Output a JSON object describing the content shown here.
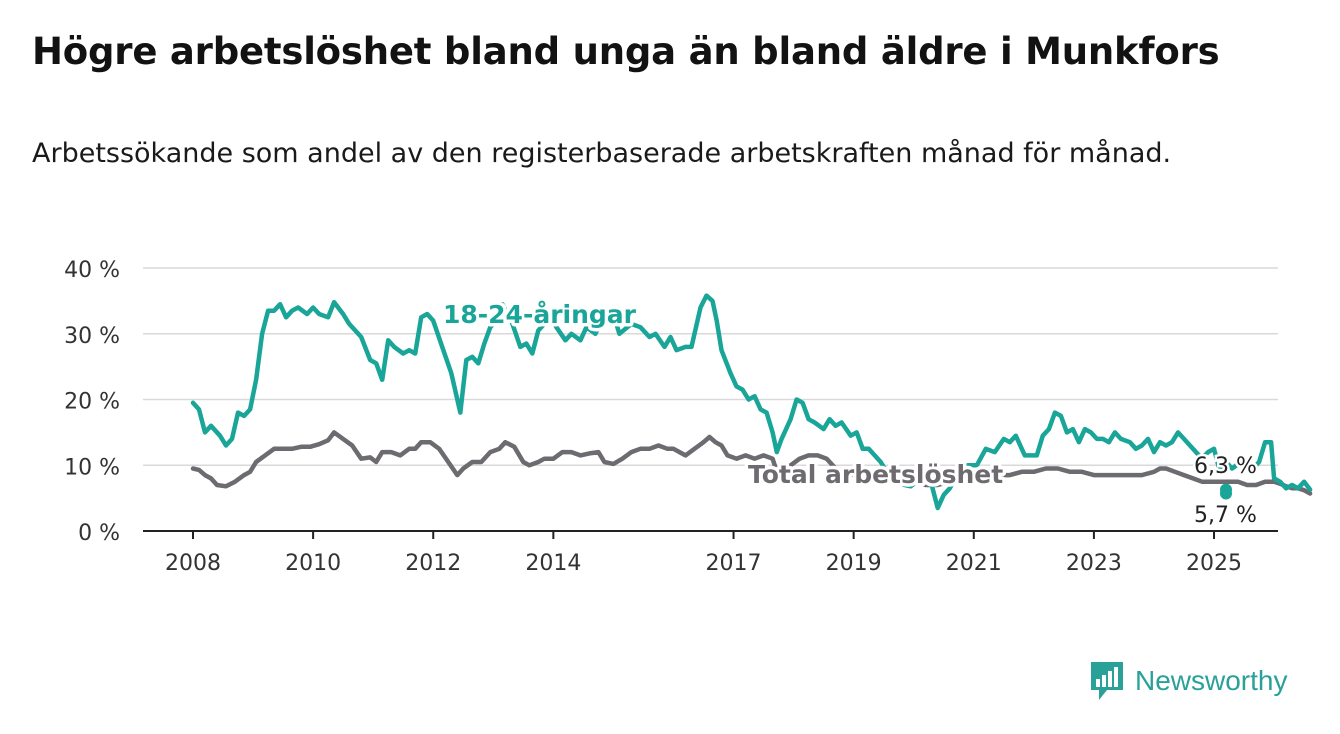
{
  "title": "Högre arbetslöshet bland unga än bland äldre i Munkfors",
  "subtitle": "Arbetssökande som andel av den registerbaserade arbetskraften månad för månad.",
  "brand": {
    "name": "Newsworthy",
    "icon": "newsworthy-logo-icon",
    "color": "#2aa198"
  },
  "chart_data": {
    "type": "line",
    "title": "Högre arbetslöshet bland unga än bland äldre i Munkfors",
    "subtitle": "Arbetssökande som andel av den registerbaserade arbetskraften månad för månad.",
    "xlabel": "",
    "ylabel": "",
    "ylim": [
      0,
      40
    ],
    "xlim": [
      2007.75,
      2026.1
    ],
    "grid": true,
    "y_ticks": [
      0,
      10,
      20,
      30,
      40
    ],
    "y_tick_labels": [
      "0 %",
      "10 %",
      "20 %",
      "30 %",
      "40 %"
    ],
    "x_ticks": [
      2008,
      2010,
      2012,
      2014,
      2017,
      2019,
      2021,
      2023,
      2025
    ],
    "x_tick_labels": [
      "2008",
      "2010",
      "2012",
      "2014",
      "2017",
      "2019",
      "2021",
      "2023",
      "2025"
    ],
    "series": [
      {
        "name": "18-24-åringar",
        "color": "#1aa599",
        "end_label": "6,3 %",
        "points": [
          [
            2008.0,
            19.5
          ],
          [
            2008.1,
            18.5
          ],
          [
            2008.2,
            15.0
          ],
          [
            2008.3,
            16.0
          ],
          [
            2008.45,
            14.5
          ],
          [
            2008.55,
            13.0
          ],
          [
            2008.65,
            14.0
          ],
          [
            2008.75,
            18.0
          ],
          [
            2008.85,
            17.5
          ],
          [
            2008.95,
            18.5
          ],
          [
            2009.05,
            23.0
          ],
          [
            2009.15,
            30.0
          ],
          [
            2009.25,
            33.5
          ],
          [
            2009.35,
            33.5
          ],
          [
            2009.45,
            34.5
          ],
          [
            2009.55,
            32.5
          ],
          [
            2009.65,
            33.5
          ],
          [
            2009.75,
            34.0
          ],
          [
            2009.9,
            33.0
          ],
          [
            2010.0,
            34.0
          ],
          [
            2010.1,
            33.0
          ],
          [
            2010.25,
            32.5
          ],
          [
            2010.35,
            34.8
          ],
          [
            2010.5,
            33.0
          ],
          [
            2010.6,
            31.5
          ],
          [
            2010.8,
            29.5
          ],
          [
            2010.95,
            26.0
          ],
          [
            2011.05,
            25.5
          ],
          [
            2011.15,
            23.0
          ],
          [
            2011.25,
            29.0
          ],
          [
            2011.35,
            28.0
          ],
          [
            2011.5,
            27.0
          ],
          [
            2011.6,
            27.5
          ],
          [
            2011.7,
            27.0
          ],
          [
            2011.8,
            32.5
          ],
          [
            2011.9,
            33.0
          ],
          [
            2012.0,
            32.0
          ],
          [
            2012.15,
            28.0
          ],
          [
            2012.3,
            24.0
          ],
          [
            2012.45,
            18.0
          ],
          [
            2012.55,
            26.0
          ],
          [
            2012.65,
            26.5
          ],
          [
            2012.75,
            25.5
          ],
          [
            2012.85,
            28.5
          ],
          [
            2012.95,
            31.0
          ],
          [
            2013.05,
            32.0
          ],
          [
            2013.15,
            34.5
          ],
          [
            2013.3,
            32.0
          ],
          [
            2013.45,
            28.0
          ],
          [
            2013.55,
            28.5
          ],
          [
            2013.65,
            27.0
          ],
          [
            2013.75,
            30.5
          ],
          [
            2013.95,
            32.5
          ],
          [
            2014.05,
            31.0
          ],
          [
            2014.2,
            29.0
          ],
          [
            2014.3,
            30.0
          ],
          [
            2014.45,
            29.0
          ],
          [
            2014.55,
            31.0
          ],
          [
            2014.7,
            30.0
          ],
          [
            2014.8,
            32.0
          ],
          [
            2015.0,
            33.0
          ],
          [
            2015.1,
            30.0
          ],
          [
            2015.3,
            31.5
          ],
          [
            2015.45,
            31.0
          ],
          [
            2015.6,
            29.5
          ],
          [
            2015.7,
            30.0
          ],
          [
            2015.85,
            28.0
          ],
          [
            2015.95,
            29.5
          ],
          [
            2016.05,
            27.5
          ],
          [
            2016.2,
            28.0
          ],
          [
            2016.3,
            28.0
          ],
          [
            2016.45,
            34.0
          ],
          [
            2016.55,
            35.8
          ],
          [
            2016.65,
            35.0
          ],
          [
            2016.72,
            32.0
          ],
          [
            2016.8,
            27.5
          ],
          [
            2016.95,
            24.0
          ],
          [
            2017.05,
            22.0
          ],
          [
            2017.15,
            21.5
          ],
          [
            2017.25,
            20.0
          ],
          [
            2017.35,
            20.5
          ],
          [
            2017.45,
            18.5
          ],
          [
            2017.55,
            18.0
          ],
          [
            2017.65,
            15.0
          ],
          [
            2017.72,
            12.0
          ],
          [
            2017.8,
            14.0
          ],
          [
            2017.95,
            17.0
          ],
          [
            2018.05,
            20.0
          ],
          [
            2018.15,
            19.5
          ],
          [
            2018.25,
            17.0
          ],
          [
            2018.35,
            16.5
          ],
          [
            2018.5,
            15.5
          ],
          [
            2018.6,
            17.0
          ],
          [
            2018.7,
            16.0
          ],
          [
            2018.8,
            16.5
          ],
          [
            2018.95,
            14.5
          ],
          [
            2019.05,
            15.0
          ],
          [
            2019.15,
            12.5
          ],
          [
            2019.25,
            12.5
          ],
          [
            2019.35,
            11.5
          ],
          [
            2019.45,
            10.5
          ],
          [
            2019.55,
            9.0
          ],
          [
            2019.65,
            8.0
          ],
          [
            2019.75,
            7.5
          ],
          [
            2019.85,
            7.0
          ],
          [
            2019.95,
            6.8
          ],
          [
            2020.05,
            7.5
          ],
          [
            2020.15,
            8.0
          ],
          [
            2020.3,
            7.0
          ],
          [
            2020.4,
            3.5
          ],
          [
            2020.5,
            5.5
          ],
          [
            2020.6,
            6.5
          ],
          [
            2020.75,
            9.0
          ],
          [
            2020.9,
            10.0
          ],
          [
            2021.05,
            10.0
          ],
          [
            2021.2,
            12.5
          ],
          [
            2021.35,
            12.0
          ],
          [
            2021.5,
            14.0
          ],
          [
            2021.6,
            13.5
          ],
          [
            2021.7,
            14.5
          ],
          [
            2021.85,
            11.5
          ],
          [
            2021.95,
            11.5
          ],
          [
            2022.05,
            11.5
          ],
          [
            2022.15,
            14.5
          ],
          [
            2022.25,
            15.5
          ],
          [
            2022.35,
            18.0
          ],
          [
            2022.45,
            17.5
          ],
          [
            2022.55,
            15.0
          ],
          [
            2022.65,
            15.5
          ],
          [
            2022.75,
            13.5
          ],
          [
            2022.85,
            15.5
          ],
          [
            2022.95,
            15.0
          ],
          [
            2023.05,
            14.0
          ],
          [
            2023.15,
            14.0
          ],
          [
            2023.25,
            13.5
          ],
          [
            2023.35,
            15.0
          ],
          [
            2023.45,
            14.0
          ],
          [
            2023.6,
            13.5
          ],
          [
            2023.7,
            12.5
          ],
          [
            2023.8,
            13.0
          ],
          [
            2023.9,
            14.0
          ],
          [
            2024.0,
            12.0
          ],
          [
            2024.1,
            13.5
          ],
          [
            2024.2,
            13.0
          ],
          [
            2024.3,
            13.5
          ],
          [
            2024.4,
            15.0
          ],
          [
            2024.5,
            14.0
          ],
          [
            2024.6,
            13.0
          ],
          [
            2024.7,
            12.0
          ],
          [
            2024.8,
            11.0
          ],
          [
            2024.9,
            12.0
          ],
          [
            2025.0,
            12.5
          ],
          [
            2025.1,
            9.0
          ],
          [
            2025.2,
            10.5
          ],
          [
            2025.3,
            9.5
          ],
          [
            2025.45,
            10.5
          ],
          [
            2025.55,
            10.0
          ],
          [
            2025.65,
            9.5
          ],
          [
            2025.75,
            10.5
          ],
          [
            2025.85,
            13.5
          ],
          [
            2025.95,
            13.5
          ],
          [
            2026.0,
            8.0
          ],
          [
            2026.1,
            7.5
          ],
          [
            2026.2,
            6.5
          ],
          [
            2026.3,
            7.0
          ],
          [
            2026.4,
            6.5
          ],
          [
            2026.5,
            7.5
          ],
          [
            2026.6,
            6.3
          ]
        ]
      },
      {
        "name": "Total arbetslöshet",
        "color": "#6d6a70",
        "end_label": "5,7 %",
        "points": [
          [
            2008.0,
            9.5
          ],
          [
            2008.1,
            9.3
          ],
          [
            2008.2,
            8.5
          ],
          [
            2008.3,
            8.0
          ],
          [
            2008.4,
            7.0
          ],
          [
            2008.55,
            6.8
          ],
          [
            2008.7,
            7.5
          ],
          [
            2008.85,
            8.5
          ],
          [
            2008.95,
            9.0
          ],
          [
            2009.05,
            10.5
          ],
          [
            2009.2,
            11.5
          ],
          [
            2009.35,
            12.5
          ],
          [
            2009.5,
            12.5
          ],
          [
            2009.65,
            12.5
          ],
          [
            2009.8,
            12.8
          ],
          [
            2009.95,
            12.8
          ],
          [
            2010.1,
            13.2
          ],
          [
            2010.25,
            13.8
          ],
          [
            2010.35,
            15.0
          ],
          [
            2010.5,
            14.0
          ],
          [
            2010.65,
            13.0
          ],
          [
            2010.8,
            11.0
          ],
          [
            2010.95,
            11.2
          ],
          [
            2011.05,
            10.5
          ],
          [
            2011.15,
            12.0
          ],
          [
            2011.3,
            12.0
          ],
          [
            2011.45,
            11.5
          ],
          [
            2011.6,
            12.5
          ],
          [
            2011.7,
            12.5
          ],
          [
            2011.8,
            13.5
          ],
          [
            2011.95,
            13.5
          ],
          [
            2012.1,
            12.5
          ],
          [
            2012.25,
            10.5
          ],
          [
            2012.4,
            8.5
          ],
          [
            2012.5,
            9.5
          ],
          [
            2012.65,
            10.5
          ],
          [
            2012.8,
            10.5
          ],
          [
            2012.95,
            12.0
          ],
          [
            2013.1,
            12.5
          ],
          [
            2013.2,
            13.5
          ],
          [
            2013.35,
            12.8
          ],
          [
            2013.5,
            10.5
          ],
          [
            2013.6,
            10.0
          ],
          [
            2013.75,
            10.5
          ],
          [
            2013.85,
            11.0
          ],
          [
            2014.0,
            11.0
          ],
          [
            2014.15,
            12.0
          ],
          [
            2014.3,
            12.0
          ],
          [
            2014.45,
            11.5
          ],
          [
            2014.6,
            11.8
          ],
          [
            2014.75,
            12.0
          ],
          [
            2014.85,
            10.5
          ],
          [
            2015.0,
            10.2
          ],
          [
            2015.15,
            11.0
          ],
          [
            2015.3,
            12.0
          ],
          [
            2015.45,
            12.5
          ],
          [
            2015.6,
            12.5
          ],
          [
            2015.75,
            13.0
          ],
          [
            2015.9,
            12.5
          ],
          [
            2016.0,
            12.5
          ],
          [
            2016.1,
            12.0
          ],
          [
            2016.2,
            11.5
          ],
          [
            2016.35,
            12.5
          ],
          [
            2016.5,
            13.5
          ],
          [
            2016.6,
            14.3
          ],
          [
            2016.7,
            13.5
          ],
          [
            2016.8,
            13.0
          ],
          [
            2016.9,
            11.5
          ],
          [
            2017.05,
            11.0
          ],
          [
            2017.2,
            11.5
          ],
          [
            2017.35,
            11.0
          ],
          [
            2017.5,
            11.5
          ],
          [
            2017.65,
            11.0
          ],
          [
            2017.72,
            9.0
          ],
          [
            2017.85,
            9.0
          ],
          [
            2017.95,
            10.0
          ],
          [
            2018.1,
            11.0
          ],
          [
            2018.25,
            11.5
          ],
          [
            2018.4,
            11.5
          ],
          [
            2018.55,
            11.0
          ],
          [
            2018.7,
            9.5
          ],
          [
            2018.85,
            9.0
          ],
          [
            2019.0,
            8.5
          ],
          [
            2019.2,
            8.5
          ],
          [
            2019.4,
            8.0
          ],
          [
            2019.6,
            8.0
          ],
          [
            2019.8,
            7.5
          ],
          [
            2020.0,
            7.5
          ],
          [
            2020.2,
            7.0
          ],
          [
            2020.4,
            7.0
          ],
          [
            2020.6,
            7.5
          ],
          [
            2020.8,
            8.0
          ],
          [
            2021.0,
            8.0
          ],
          [
            2021.2,
            8.5
          ],
          [
            2021.4,
            8.5
          ],
          [
            2021.6,
            8.5
          ],
          [
            2021.8,
            9.0
          ],
          [
            2022.0,
            9.0
          ],
          [
            2022.2,
            9.5
          ],
          [
            2022.4,
            9.5
          ],
          [
            2022.6,
            9.0
          ],
          [
            2022.8,
            9.0
          ],
          [
            2023.0,
            8.5
          ],
          [
            2023.2,
            8.5
          ],
          [
            2023.4,
            8.5
          ],
          [
            2023.6,
            8.5
          ],
          [
            2023.8,
            8.5
          ],
          [
            2024.0,
            9.0
          ],
          [
            2024.1,
            9.5
          ],
          [
            2024.2,
            9.5
          ],
          [
            2024.35,
            9.0
          ],
          [
            2024.5,
            8.5
          ],
          [
            2024.65,
            8.0
          ],
          [
            2024.8,
            7.5
          ],
          [
            2024.95,
            7.5
          ],
          [
            2025.1,
            7.5
          ],
          [
            2025.25,
            7.5
          ],
          [
            2025.4,
            7.5
          ],
          [
            2025.55,
            7.0
          ],
          [
            2025.7,
            7.0
          ],
          [
            2025.85,
            7.5
          ],
          [
            2026.0,
            7.5
          ],
          [
            2026.1,
            7.2
          ],
          [
            2026.2,
            6.8
          ],
          [
            2026.3,
            6.5
          ],
          [
            2026.4,
            6.5
          ],
          [
            2026.5,
            6.2
          ],
          [
            2026.6,
            5.7
          ]
        ]
      }
    ]
  }
}
